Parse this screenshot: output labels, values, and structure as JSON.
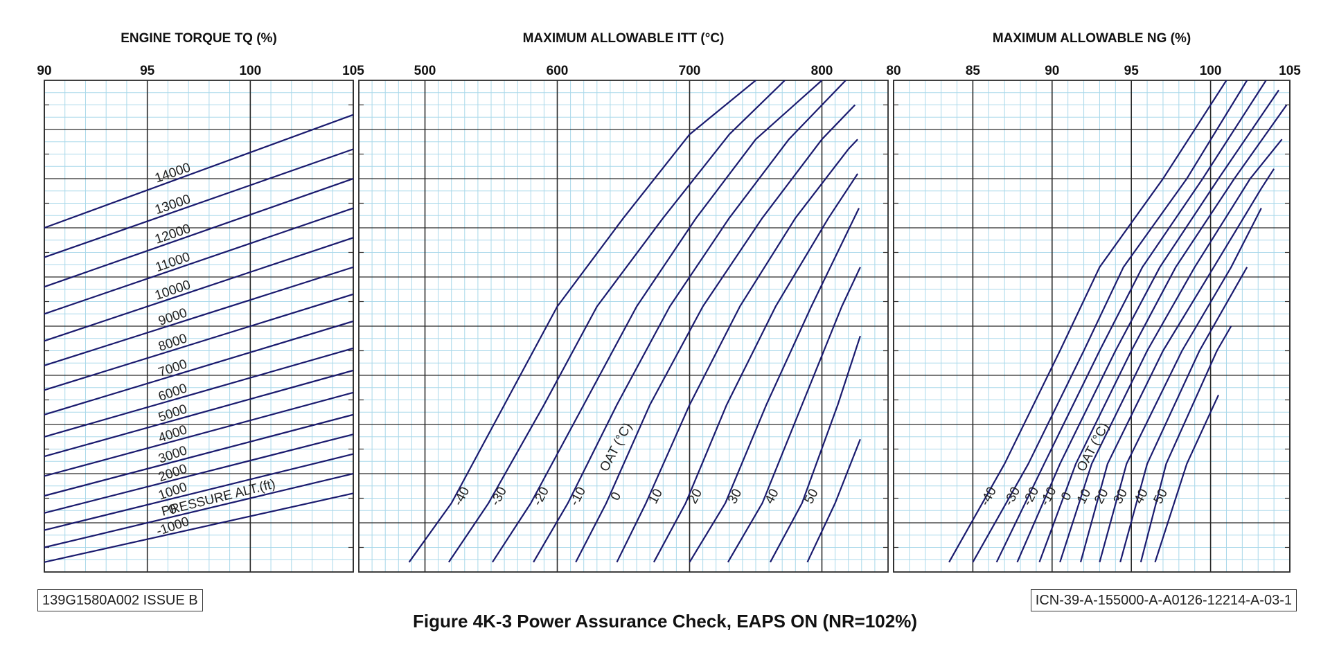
{
  "colors": {
    "minor_grid": "#a9d8ea",
    "major_grid": "#2a2a2a",
    "curve": "#1a1a6e",
    "text": "#222222"
  },
  "doc_number": "139G1580A002 ISSUE B",
  "icn_number": "ICN-39-A-155000-A-A0126-12214-A-03-1",
  "figure_caption": "Figure 4K-3  Power Assurance Check, EAPS ON (NR=102%)",
  "chart_data": [
    {
      "type": "line",
      "title": "ENGINE TORQUE TQ (%)",
      "xlim": [
        90,
        105
      ],
      "ylim": [
        0,
        100
      ],
      "xticks": [
        "90",
        "95",
        "100",
        "105"
      ],
      "xtick_values": [
        90,
        95,
        100,
        105
      ],
      "curve_family_label": "PRESSURE ALT.(ft)",
      "series": [
        {
          "name": "-1000",
          "x": [
            90,
            105
          ],
          "y": [
            2,
            16
          ]
        },
        {
          "name": "0",
          "x": [
            90,
            105
          ],
          "y": [
            5,
            20
          ]
        },
        {
          "name": "1000",
          "x": [
            90,
            105
          ],
          "y": [
            8.5,
            24
          ]
        },
        {
          "name": "2000",
          "x": [
            90,
            105
          ],
          "y": [
            12,
            28
          ]
        },
        {
          "name": "3000",
          "x": [
            90,
            105
          ],
          "y": [
            15.5,
            32
          ]
        },
        {
          "name": "4000",
          "x": [
            90,
            105
          ],
          "y": [
            19.5,
            36.5
          ]
        },
        {
          "name": "5000",
          "x": [
            90,
            105
          ],
          "y": [
            23.5,
            41
          ]
        },
        {
          "name": "6000",
          "x": [
            90,
            105
          ],
          "y": [
            27.5,
            45.5
          ]
        },
        {
          "name": "7000",
          "x": [
            90,
            105
          ],
          "y": [
            32,
            51
          ]
        },
        {
          "name": "8000",
          "x": [
            90,
            105
          ],
          "y": [
            37,
            56.5
          ]
        },
        {
          "name": "9000",
          "x": [
            90,
            105
          ],
          "y": [
            42,
            62
          ]
        },
        {
          "name": "10000",
          "x": [
            90,
            105
          ],
          "y": [
            47,
            68
          ]
        },
        {
          "name": "11000",
          "x": [
            90,
            105
          ],
          "y": [
            52.5,
            74
          ]
        },
        {
          "name": "12000",
          "x": [
            90,
            105
          ],
          "y": [
            58,
            80
          ]
        },
        {
          "name": "13000",
          "x": [
            90,
            105
          ],
          "y": [
            64,
            86
          ]
        },
        {
          "name": "14000",
          "x": [
            90,
            105
          ],
          "y": [
            70,
            93
          ]
        }
      ]
    },
    {
      "type": "line",
      "title": "MAXIMUM ALLOWABLE ITT (°C)",
      "xlim": [
        450,
        850
      ],
      "ylim": [
        0,
        100
      ],
      "xticks": [
        "500",
        "600",
        "700",
        "800"
      ],
      "xtick_values": [
        500,
        600,
        700,
        800
      ],
      "curve_family_label": "OAT (°C)",
      "series": [
        {
          "name": "-40",
          "x": [
            488,
            520,
            560,
            600,
            650,
            700,
            750
          ],
          "y": [
            2,
            14,
            34,
            54,
            72,
            89,
            100
          ]
        },
        {
          "name": "-30",
          "x": [
            518,
            548,
            590,
            630,
            680,
            730,
            772
          ],
          "y": [
            2,
            14,
            34,
            54,
            72,
            89,
            100
          ]
        },
        {
          "name": "-20",
          "x": [
            551,
            580,
            620,
            660,
            705,
            750,
            800
          ],
          "y": [
            2,
            14,
            34,
            54,
            72,
            88,
            100
          ]
        },
        {
          "name": "-10",
          "x": [
            582,
            608,
            645,
            685,
            730,
            775,
            818
          ],
          "y": [
            2,
            14,
            34,
            54,
            72,
            88,
            100
          ]
        },
        {
          "name": "0",
          "x": [
            614,
            637,
            670,
            710,
            755,
            800,
            825
          ],
          "y": [
            2,
            14,
            34,
            54,
            72,
            88,
            95
          ]
        },
        {
          "name": "10",
          "x": [
            645,
            667,
            700,
            738,
            780,
            820,
            827
          ],
          "y": [
            2,
            14,
            34,
            54,
            72,
            86,
            88
          ]
        },
        {
          "name": "20",
          "x": [
            673,
            697,
            728,
            765,
            805,
            827
          ],
          "y": [
            2,
            14,
            34,
            54,
            72,
            81
          ]
        },
        {
          "name": "30",
          "x": [
            700,
            727,
            758,
            792,
            828
          ],
          "y": [
            2,
            14,
            34,
            54,
            74
          ]
        },
        {
          "name": "40",
          "x": [
            729,
            755,
            785,
            815,
            829
          ],
          "y": [
            2,
            14,
            34,
            54,
            62
          ]
        },
        {
          "name": "50",
          "x": [
            761,
            785,
            812,
            829
          ],
          "y": [
            2,
            14,
            34,
            48
          ]
        },
        {
          "name": "",
          "x": [
            789,
            810,
            829
          ],
          "y": [
            2,
            14,
            27
          ]
        }
      ]
    },
    {
      "type": "line",
      "title": "MAXIMUM ALLOWABLE NG (%)",
      "xlim": [
        80,
        105
      ],
      "ylim": [
        0,
        100
      ],
      "xticks": [
        "80",
        "85",
        "90",
        "95",
        "100",
        "105"
      ],
      "xtick_values": [
        80,
        85,
        90,
        95,
        100,
        105
      ],
      "curve_family_label": "OAT (°C)",
      "series": [
        {
          "name": "-40",
          "x": [
            83.5,
            87,
            90.5,
            93,
            97,
            101
          ],
          "y": [
            2,
            22,
            45,
            62,
            80,
            100
          ]
        },
        {
          "name": "-30",
          "x": [
            85,
            88.5,
            92,
            94.5,
            98.5,
            102.3
          ],
          "y": [
            2,
            22,
            45,
            62,
            80,
            100
          ]
        },
        {
          "name": "-20",
          "x": [
            86.5,
            89.5,
            93,
            95.7,
            99.5,
            103.5
          ],
          "y": [
            2,
            22,
            45,
            62,
            80,
            100
          ]
        },
        {
          "name": "-10",
          "x": [
            87.8,
            90.5,
            94,
            96.8,
            100.5,
            104.3
          ],
          "y": [
            2,
            22,
            45,
            62,
            80,
            98
          ]
        },
        {
          "name": "0",
          "x": [
            89.2,
            91.5,
            95,
            97.8,
            101.5,
            104.8
          ],
          "y": [
            2,
            22,
            45,
            62,
            80,
            95
          ]
        },
        {
          "name": "10",
          "x": [
            90.5,
            92.5,
            96,
            99,
            102.5,
            104.5
          ],
          "y": [
            2,
            22,
            45,
            62,
            80,
            88
          ]
        },
        {
          "name": "20",
          "x": [
            91.8,
            93.5,
            97,
            100.2,
            103.2,
            104
          ],
          "y": [
            2,
            22,
            45,
            62,
            78,
            82
          ]
        },
        {
          "name": "30",
          "x": [
            93,
            94.7,
            98.2,
            101.3,
            103.2
          ],
          "y": [
            2,
            22,
            45,
            62,
            74
          ]
        },
        {
          "name": "40",
          "x": [
            94.3,
            96,
            99.3,
            102.3
          ],
          "y": [
            2,
            22,
            45,
            62
          ]
        },
        {
          "name": "50",
          "x": [
            95.6,
            97.2,
            100.4,
            101.3
          ],
          "y": [
            2,
            22,
            45,
            50
          ]
        },
        {
          "name": "",
          "x": [
            96.5,
            98.5,
            100.5
          ],
          "y": [
            2,
            22,
            36
          ]
        }
      ]
    }
  ]
}
